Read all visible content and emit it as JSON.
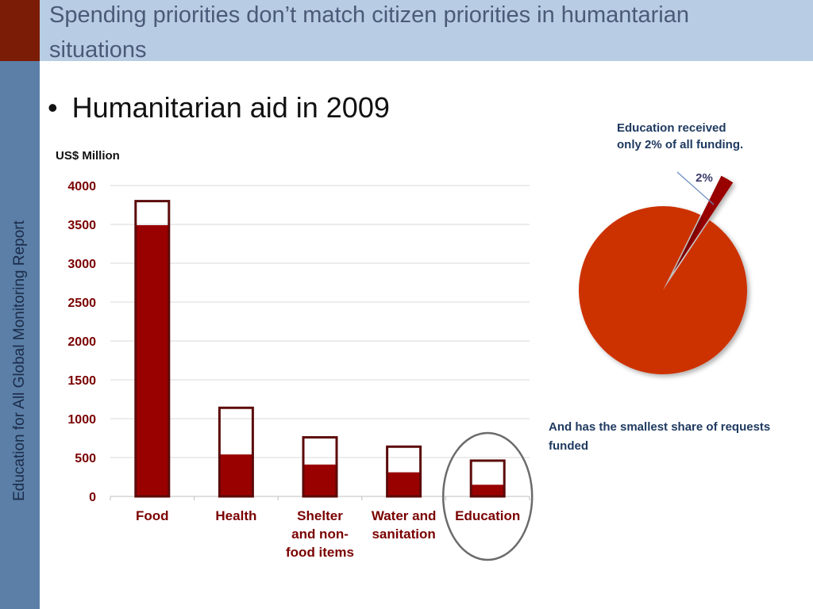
{
  "slide": {
    "title": "Spending priorities don’t match citizen priorities in humantarian situations",
    "sidebar_label": "Education for All Global Monitoring Report",
    "bullet": "Humanitarian aid in 2009",
    "pie_callout": "Education received only 2% of all funding.",
    "bottom_note": "And has the smallest share of requests funded"
  },
  "colors": {
    "bar_funded": "#990000",
    "bar_outline": "#5c0a0a",
    "pie_main": "#cc3300",
    "pie_education": "#990000",
    "axis_text": "#7a0000",
    "title_bar": "#b8cce4",
    "sidebar": "#5b7fa6"
  },
  "chart_data": [
    {
      "type": "bar",
      "ylabel": "US$ Million",
      "ylim": [
        0,
        4000
      ],
      "yticks": [
        0,
        500,
        1000,
        1500,
        2000,
        2500,
        3000,
        3500,
        4000
      ],
      "categories": [
        "Food",
        "Health",
        "Shelter and non-food items",
        "Water and sanitation",
        "Education"
      ],
      "category_lines": [
        [
          "Food"
        ],
        [
          "Health"
        ],
        [
          "Shelter",
          "and non-",
          "food items"
        ],
        [
          "Water and",
          "sanitation"
        ],
        [
          "Education"
        ]
      ],
      "series": [
        {
          "values": [
            3490,
            540,
            410,
            310,
            150
          ]
        },
        {
          "values": [
            3800,
            1140,
            760,
            640,
            460
          ]
        }
      ],
      "highlight": "Education",
      "grid": true
    },
    {
      "type": "pie",
      "slices": [
        {
          "label": "Education",
          "value": 2,
          "data_label": "2%"
        },
        {
          "value": 98
        }
      ]
    }
  ]
}
